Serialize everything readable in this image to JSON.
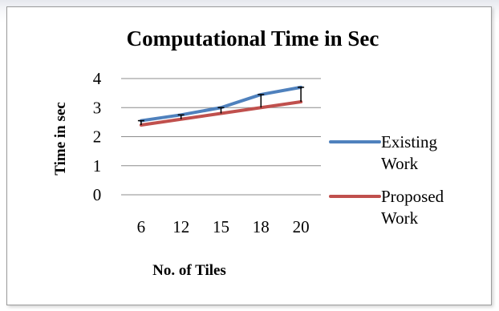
{
  "chart_data": {
    "type": "line",
    "title": "Computational Time in Sec",
    "xlabel": "No. of Tiles",
    "ylabel": "Time in sec",
    "categories": [
      "6",
      "12",
      "15",
      "18",
      "20"
    ],
    "yticks": [
      0,
      1,
      2,
      3,
      4
    ],
    "ylim": [
      0,
      4
    ],
    "grid": "horizontal",
    "legend_position": "right",
    "error_bars": true,
    "series": [
      {
        "name": "Existing Work",
        "legend_lines": [
          "Existing",
          "Work"
        ],
        "values": [
          2.55,
          2.75,
          3.0,
          3.45,
          3.7
        ],
        "color": "#4f81bd"
      },
      {
        "name": "Proposed Work",
        "legend_lines": [
          "Proposed",
          "Work"
        ],
        "values": [
          2.4,
          2.6,
          2.8,
          3.0,
          3.2
        ],
        "color": "#c0504d"
      }
    ]
  }
}
